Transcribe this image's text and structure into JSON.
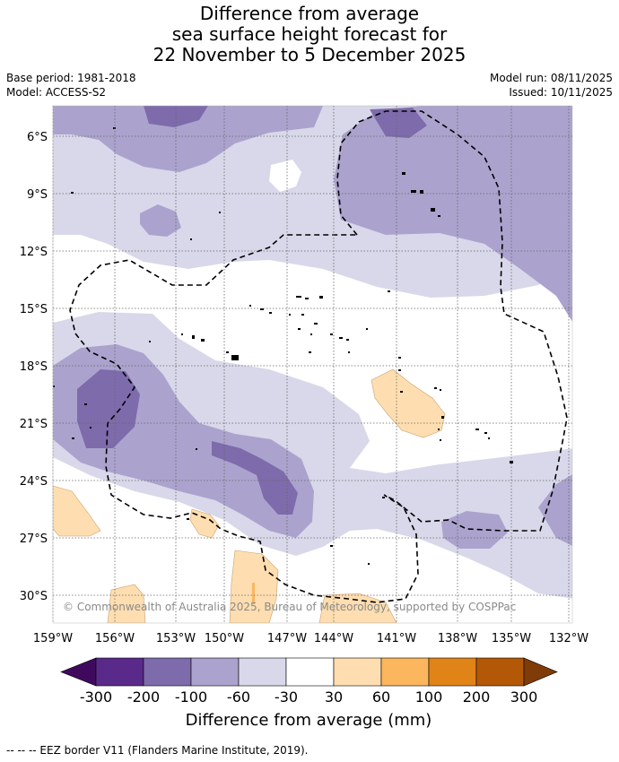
{
  "title": {
    "line1": "Difference from average",
    "line2": "sea surface height forecast for",
    "line3": "22 November to 5 December 2025"
  },
  "meta": {
    "base_period": "Base period: 1981-2018",
    "model": "Model: ACCESS-S2",
    "model_run": "Model run: 08/11/2025",
    "issued": "Issued: 10/11/2025"
  },
  "map": {
    "lon_labels": [
      "159°W",
      "156°W",
      "153°W",
      "150°W",
      "147°W",
      "144°W",
      "141°W",
      "138°W",
      "135°W",
      "132°W"
    ],
    "lat_labels": [
      "6°S",
      "9°S",
      "12°S",
      "15°S",
      "18°S",
      "21°S",
      "24°S",
      "27°S",
      "30°S"
    ],
    "copyright": "© Commonwealth of Australia 2025, Bureau of Meteorology, supported by COSPPac"
  },
  "colorbar": {
    "ticks": [
      "-300",
      "-200",
      "-100",
      "-60",
      "-30",
      "30",
      "60",
      "100",
      "200",
      "300"
    ],
    "colors": [
      "#3f0a5e",
      "#5a2a8a",
      "#7e6bab",
      "#aba3cd",
      "#d8d8ea",
      "#ffffff",
      "#fedeb0",
      "#fbb65e",
      "#e08418",
      "#b35806",
      "#7f3b08"
    ],
    "label": "Difference from average (mm)"
  },
  "footnote": "--  --  -- EEZ border V11 (Flanders Marine Institute, 2019)."
}
